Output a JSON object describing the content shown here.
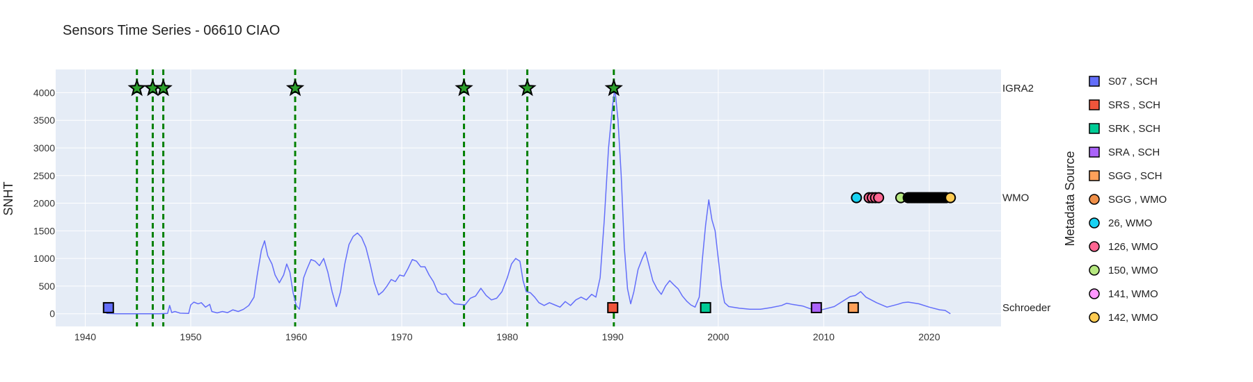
{
  "chart_data": {
    "type": "line",
    "title": "Sensors Time Series - 06610 CIAO",
    "xlabel": "",
    "ylabel": "SNHT",
    "xlim": [
      1937.2,
      2026.8
    ],
    "ylim": [
      -230,
      4420
    ],
    "x_ticks": [
      1940,
      1950,
      1960,
      1970,
      1980,
      1990,
      2000,
      2010,
      2020
    ],
    "y_ticks": [
      0,
      500,
      1000,
      1500,
      2000,
      2500,
      3000,
      3500,
      4000
    ],
    "grid": true,
    "lane_labels": [
      {
        "text": "IGRA2",
        "y": 4080
      },
      {
        "text": "WMO",
        "y": 2100
      },
      {
        "text": "Schroeder",
        "y": 110
      }
    ],
    "series_line": {
      "color": "#636efa",
      "points": [
        [
          1942.0,
          5
        ],
        [
          1943.0,
          0
        ],
        [
          1944.0,
          0
        ],
        [
          1945.0,
          0
        ],
        [
          1946.0,
          0
        ],
        [
          1947.0,
          0
        ],
        [
          1947.8,
          5
        ],
        [
          1948.0,
          150
        ],
        [
          1948.2,
          20
        ],
        [
          1948.5,
          40
        ],
        [
          1949.0,
          10
        ],
        [
          1949.8,
          5
        ],
        [
          1950.0,
          160
        ],
        [
          1950.3,
          210
        ],
        [
          1950.7,
          180
        ],
        [
          1951.0,
          200
        ],
        [
          1951.4,
          120
        ],
        [
          1951.8,
          170
        ],
        [
          1952.0,
          40
        ],
        [
          1952.5,
          15
        ],
        [
          1953.0,
          40
        ],
        [
          1953.5,
          20
        ],
        [
          1954.0,
          70
        ],
        [
          1954.5,
          40
        ],
        [
          1955.0,
          80
        ],
        [
          1955.5,
          150
        ],
        [
          1956.0,
          300
        ],
        [
          1956.3,
          700
        ],
        [
          1956.7,
          1150
        ],
        [
          1957.0,
          1320
        ],
        [
          1957.3,
          1050
        ],
        [
          1957.7,
          900
        ],
        [
          1958.0,
          700
        ],
        [
          1958.4,
          560
        ],
        [
          1958.8,
          700
        ],
        [
          1959.1,
          900
        ],
        [
          1959.4,
          750
        ],
        [
          1959.7,
          380
        ],
        [
          1960.0,
          150
        ],
        [
          1960.3,
          80
        ],
        [
          1960.7,
          650
        ],
        [
          1961.0,
          800
        ],
        [
          1961.4,
          980
        ],
        [
          1961.8,
          950
        ],
        [
          1962.2,
          870
        ],
        [
          1962.6,
          1000
        ],
        [
          1963.0,
          750
        ],
        [
          1963.4,
          400
        ],
        [
          1963.8,
          130
        ],
        [
          1964.2,
          400
        ],
        [
          1964.6,
          900
        ],
        [
          1965.0,
          1250
        ],
        [
          1965.4,
          1400
        ],
        [
          1965.8,
          1460
        ],
        [
          1966.2,
          1380
        ],
        [
          1966.6,
          1200
        ],
        [
          1967.0,
          900
        ],
        [
          1967.4,
          560
        ],
        [
          1967.8,
          340
        ],
        [
          1968.2,
          400
        ],
        [
          1968.6,
          500
        ],
        [
          1969.0,
          620
        ],
        [
          1969.4,
          580
        ],
        [
          1969.8,
          700
        ],
        [
          1970.2,
          680
        ],
        [
          1970.6,
          820
        ],
        [
          1971.0,
          980
        ],
        [
          1971.4,
          950
        ],
        [
          1971.8,
          850
        ],
        [
          1972.2,
          850
        ],
        [
          1972.6,
          700
        ],
        [
          1973.0,
          580
        ],
        [
          1973.4,
          400
        ],
        [
          1973.8,
          350
        ],
        [
          1974.2,
          360
        ],
        [
          1974.6,
          250
        ],
        [
          1975.0,
          180
        ],
        [
          1975.5,
          170
        ],
        [
          1976.0,
          160
        ],
        [
          1976.5,
          280
        ],
        [
          1977.0,
          320
        ],
        [
          1977.5,
          460
        ],
        [
          1978.0,
          330
        ],
        [
          1978.5,
          250
        ],
        [
          1979.0,
          280
        ],
        [
          1979.5,
          400
        ],
        [
          1980.0,
          650
        ],
        [
          1980.4,
          900
        ],
        [
          1980.8,
          1000
        ],
        [
          1981.2,
          950
        ],
        [
          1981.5,
          600
        ],
        [
          1981.8,
          400
        ],
        [
          1982.2,
          380
        ],
        [
          1982.6,
          300
        ],
        [
          1983.0,
          200
        ],
        [
          1983.5,
          150
        ],
        [
          1984.0,
          200
        ],
        [
          1984.5,
          160
        ],
        [
          1985.0,
          120
        ],
        [
          1985.5,
          220
        ],
        [
          1986.0,
          150
        ],
        [
          1986.5,
          250
        ],
        [
          1987.0,
          300
        ],
        [
          1987.5,
          250
        ],
        [
          1988.0,
          350
        ],
        [
          1988.4,
          300
        ],
        [
          1988.8,
          650
        ],
        [
          1989.2,
          1700
        ],
        [
          1989.6,
          3000
        ],
        [
          1990.0,
          3800
        ],
        [
          1990.2,
          4080
        ],
        [
          1990.5,
          3500
        ],
        [
          1990.8,
          2500
        ],
        [
          1991.1,
          1200
        ],
        [
          1991.4,
          450
        ],
        [
          1991.7,
          180
        ],
        [
          1992.0,
          400
        ],
        [
          1992.4,
          800
        ],
        [
          1992.8,
          1000
        ],
        [
          1993.1,
          1120
        ],
        [
          1993.4,
          900
        ],
        [
          1993.8,
          600
        ],
        [
          1994.2,
          450
        ],
        [
          1994.6,
          350
        ],
        [
          1995.0,
          500
        ],
        [
          1995.4,
          600
        ],
        [
          1995.8,
          520
        ],
        [
          1996.2,
          450
        ],
        [
          1996.6,
          320
        ],
        [
          1997.0,
          230
        ],
        [
          1997.4,
          160
        ],
        [
          1997.8,
          120
        ],
        [
          1998.2,
          300
        ],
        [
          1998.5,
          1000
        ],
        [
          1998.8,
          1600
        ],
        [
          1999.1,
          2060
        ],
        [
          1999.4,
          1700
        ],
        [
          1999.7,
          1500
        ],
        [
          2000.0,
          1000
        ],
        [
          2000.3,
          500
        ],
        [
          2000.6,
          200
        ],
        [
          2001.0,
          130
        ],
        [
          2002.0,
          100
        ],
        [
          2003.0,
          80
        ],
        [
          2004.0,
          80
        ],
        [
          2005.0,
          110
        ],
        [
          2006.0,
          150
        ],
        [
          2006.5,
          190
        ],
        [
          2007.0,
          170
        ],
        [
          2008.0,
          140
        ],
        [
          2009.0,
          70
        ],
        [
          2009.5,
          60
        ],
        [
          2010.0,
          80
        ],
        [
          2011.0,
          130
        ],
        [
          2012.0,
          250
        ],
        [
          2012.5,
          310
        ],
        [
          2013.0,
          330
        ],
        [
          2013.5,
          400
        ],
        [
          2014.0,
          300
        ],
        [
          2015.0,
          200
        ],
        [
          2016.0,
          120
        ],
        [
          2017.0,
          170
        ],
        [
          2017.5,
          200
        ],
        [
          2018.0,
          210
        ],
        [
          2019.0,
          180
        ],
        [
          2020.0,
          120
        ],
        [
          2021.0,
          70
        ],
        [
          2021.5,
          60
        ],
        [
          2022.0,
          0
        ]
      ]
    },
    "vlines": {
      "color": "#008000",
      "x": [
        1944.9,
        1946.4,
        1947.4,
        1959.9,
        1975.9,
        1981.9,
        1990.1
      ]
    },
    "igra_stars": {
      "y": 4080,
      "fill": "#2ca02c",
      "x": [
        1944.9,
        1946.4,
        1947.4,
        1959.9,
        1975.9,
        1981.9,
        1990.1
      ]
    },
    "schroeder_markers": {
      "y": 110,
      "points": [
        {
          "x": 1942.2,
          "color": "#636efa"
        },
        {
          "x": 1990.0,
          "color": "#ef553b"
        },
        {
          "x": 1998.8,
          "color": "#00cc96"
        },
        {
          "x": 2009.3,
          "color": "#ab63fa"
        },
        {
          "x": 2012.8,
          "color": "#ffa15a"
        }
      ]
    },
    "wmo_markers": {
      "y": 2100,
      "cyan": [
        2013.1
      ],
      "pink": [
        2014.3,
        2014.6,
        2014.9,
        2015.2
      ],
      "green": [
        2017.3
      ],
      "black_from": 2018.0,
      "black_to": 2021.7,
      "yellow": [
        2022.0
      ]
    },
    "legend": {
      "title": "Metadata Source",
      "items": [
        {
          "label": "S07 , SCH",
          "symbol": "square",
          "color": "#636efa"
        },
        {
          "label": "SRS , SCH",
          "symbol": "square",
          "color": "#ef553b"
        },
        {
          "label": "SRK , SCH",
          "symbol": "square",
          "color": "#00cc96"
        },
        {
          "label": "SRA , SCH",
          "symbol": "square",
          "color": "#ab63fa"
        },
        {
          "label": "SGG , SCH",
          "symbol": "square",
          "color": "#ffa15a"
        },
        {
          "label": "SGG , WMO",
          "symbol": "circle",
          "color": "#ef8f48"
        },
        {
          "label": "26, WMO",
          "symbol": "circle",
          "color": "#19d3f3"
        },
        {
          "label": "126, WMO",
          "symbol": "circle",
          "color": "#ff6692"
        },
        {
          "label": "150, WMO",
          "symbol": "circle",
          "color": "#b6e880"
        },
        {
          "label": "141, WMO",
          "symbol": "circle",
          "color": "#ff97ff"
        },
        {
          "label": "142, WMO",
          "symbol": "circle",
          "color": "#fecb52"
        }
      ]
    }
  }
}
